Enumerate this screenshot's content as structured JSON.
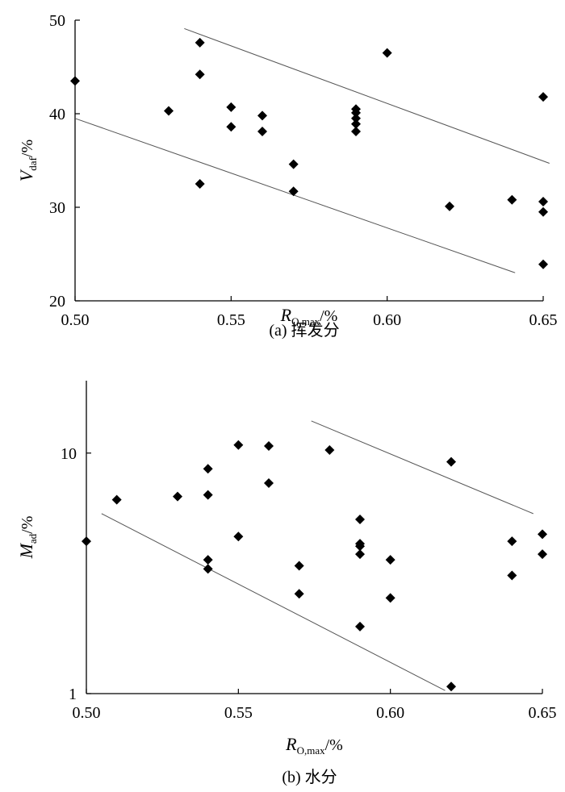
{
  "chart_data": [
    {
      "type": "scatter",
      "caption": "(a) 挥发分",
      "xlabel": {
        "var": "R",
        "sub": "O,max",
        "unit": "/%"
      },
      "ylabel": {
        "var": "V",
        "sub": "daf",
        "unit": "/%"
      },
      "xlim": [
        0.5,
        0.65
      ],
      "ylim": [
        20,
        50
      ],
      "yscale": "linear",
      "xticks": [
        0.5,
        0.55,
        0.6,
        0.65
      ],
      "xtick_labels": [
        "0.50",
        "0.55",
        "0.60",
        "0.65"
      ],
      "yticks": [
        20,
        30,
        40,
        50
      ],
      "ytick_labels": [
        "20",
        "30",
        "40",
        "50"
      ],
      "grid": false,
      "marker_color": "#000000",
      "line_color": "#555555",
      "points": [
        [
          0.5,
          43.5
        ],
        [
          0.53,
          40.3
        ],
        [
          0.54,
          47.6
        ],
        [
          0.54,
          44.2
        ],
        [
          0.54,
          32.5
        ],
        [
          0.55,
          40.7
        ],
        [
          0.55,
          38.6
        ],
        [
          0.56,
          39.8
        ],
        [
          0.56,
          38.1
        ],
        [
          0.57,
          34.6
        ],
        [
          0.57,
          31.7
        ],
        [
          0.59,
          40.5
        ],
        [
          0.59,
          40.1
        ],
        [
          0.59,
          39.5
        ],
        [
          0.59,
          38.9
        ],
        [
          0.59,
          38.1
        ],
        [
          0.6,
          46.5
        ],
        [
          0.62,
          30.1
        ],
        [
          0.64,
          30.8
        ],
        [
          0.65,
          41.8
        ],
        [
          0.65,
          30.6
        ],
        [
          0.65,
          29.5
        ],
        [
          0.65,
          23.9
        ]
      ],
      "lines": [
        [
          [
            0.535,
            49.1
          ],
          [
            0.652,
            34.7
          ]
        ],
        [
          [
            0.5,
            39.5
          ],
          [
            0.641,
            23.0
          ]
        ]
      ]
    },
    {
      "type": "scatter",
      "caption": "(b) 水分",
      "xlabel": {
        "var": "R",
        "sub": "O,max",
        "unit": "/%"
      },
      "ylabel": {
        "var": "M",
        "sub": "ad",
        "unit": "/%"
      },
      "xlim": [
        0.5,
        0.65
      ],
      "ylim": [
        1,
        20
      ],
      "yscale": "log",
      "xticks": [
        0.5,
        0.55,
        0.6,
        0.65
      ],
      "xtick_labels": [
        "0.50",
        "0.55",
        "0.60",
        "0.65"
      ],
      "yticks": [
        1,
        10
      ],
      "ytick_labels": [
        "1",
        "10"
      ],
      "grid": false,
      "marker_color": "#000000",
      "line_color": "#555555",
      "points": [
        [
          0.5,
          4.3
        ],
        [
          0.51,
          6.4
        ],
        [
          0.53,
          6.6
        ],
        [
          0.54,
          8.6
        ],
        [
          0.54,
          6.7
        ],
        [
          0.54,
          3.6
        ],
        [
          0.54,
          3.3
        ],
        [
          0.55,
          10.8
        ],
        [
          0.55,
          4.5
        ],
        [
          0.56,
          10.7
        ],
        [
          0.56,
          7.5
        ],
        [
          0.57,
          3.4
        ],
        [
          0.57,
          2.6
        ],
        [
          0.58,
          10.3
        ],
        [
          0.59,
          5.3
        ],
        [
          0.59,
          4.2
        ],
        [
          0.59,
          4.1
        ],
        [
          0.59,
          3.8
        ],
        [
          0.59,
          1.9
        ],
        [
          0.6,
          3.6
        ],
        [
          0.6,
          2.5
        ],
        [
          0.62,
          9.2
        ],
        [
          0.62,
          1.07
        ],
        [
          0.64,
          4.3
        ],
        [
          0.64,
          3.1
        ],
        [
          0.65,
          4.6
        ],
        [
          0.65,
          3.8
        ]
      ],
      "lines": [
        [
          [
            0.574,
            13.6
          ],
          [
            0.647,
            5.6
          ]
        ],
        [
          [
            0.505,
            5.6
          ],
          [
            0.618,
            1.03
          ]
        ]
      ]
    }
  ]
}
